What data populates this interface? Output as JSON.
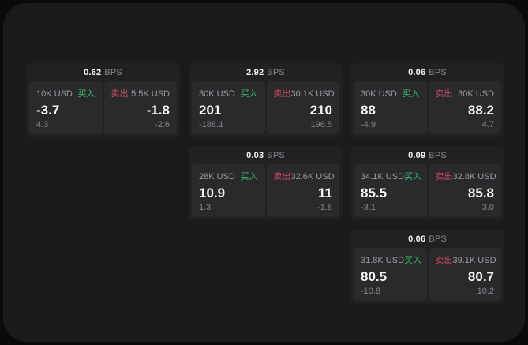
{
  "colors": {
    "page_background": "#0a0a0b",
    "board_background": "#1b1b1d",
    "card_background": "#212123",
    "tile_background": "#2a2a2c",
    "buy_green": "#34bf6e",
    "sell_red": "#c74a62",
    "text_primary": "#f5f5f7",
    "text_secondary": "#9b9ba1",
    "text_dim": "#85858b"
  },
  "cards": [
    {
      "bps_value": "0.62",
      "bps_unit": "BPS",
      "buy": {
        "amount": "10K USD",
        "label": "买入",
        "price": "-3.7",
        "delta": "4.3"
      },
      "sell": {
        "label": "卖出",
        "amount": "5.5K USD",
        "price": "-1.8",
        "delta": "-2.6"
      }
    },
    {
      "bps_value": "2.92",
      "bps_unit": "BPS",
      "buy": {
        "amount": "30K USD",
        "label": "买入",
        "price": "201",
        "delta": "-188.1"
      },
      "sell": {
        "label": "卖出",
        "amount": "30.1K USD",
        "price": "210",
        "delta": "196.5"
      }
    },
    {
      "bps_value": "0.06",
      "bps_unit": "BPS",
      "buy": {
        "amount": "30K USD",
        "label": "买入",
        "price": "88",
        "delta": "-4.9"
      },
      "sell": {
        "label": "卖出",
        "amount": "30K USD",
        "price": "88.2",
        "delta": "4.7"
      }
    },
    {
      "bps_value": "0.03",
      "bps_unit": "BPS",
      "buy": {
        "amount": "28K USD",
        "label": "买入",
        "price": "10.9",
        "delta": "1.3"
      },
      "sell": {
        "label": "卖出",
        "amount": "32.6K USD",
        "price": "11",
        "delta": "-1.8"
      }
    },
    {
      "bps_value": "0.09",
      "bps_unit": "BPS",
      "buy": {
        "amount": "34.1K USD",
        "label": "买入",
        "price": "85.5",
        "delta": "-3.1"
      },
      "sell": {
        "label": "卖出",
        "amount": "32.8K USD",
        "price": "85.8",
        "delta": "3.0"
      }
    },
    {
      "bps_value": "0.06",
      "bps_unit": "BPS",
      "buy": {
        "amount": "31.8K USD",
        "label": "买入",
        "price": "80.5",
        "delta": "-10.8"
      },
      "sell": {
        "label": "卖出",
        "amount": "39.1K USD",
        "price": "80.7",
        "delta": "10.2"
      }
    }
  ]
}
